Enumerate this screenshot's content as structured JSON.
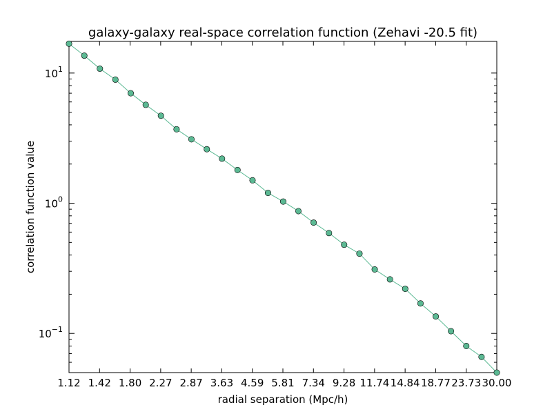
{
  "chart_data": {
    "type": "line",
    "title": "galaxy-galaxy real-space correlation function (Zehavi -20.5 fit)",
    "xlabel": "radial separation (Mpc/h)",
    "ylabel": "correlation function value",
    "x_scale": "log",
    "y_scale": "log",
    "xlim": [
      1.12,
      30.0
    ],
    "ylim": [
      0.05,
      17.5
    ],
    "x_tick_labels": [
      "1.12",
      "1.42",
      "1.80",
      "2.27",
      "2.87",
      "3.63",
      "4.59",
      "5.81",
      "7.34",
      "9.28",
      "11.74",
      "14.84",
      "18.77",
      "23.73",
      "30.00"
    ],
    "y_ticks": [
      {
        "value": 0.1,
        "base": "10",
        "exp": "−1"
      },
      {
        "value": 1,
        "base": "10",
        "exp": "0"
      },
      {
        "value": 10,
        "base": "10",
        "exp": "1"
      }
    ],
    "grid": false,
    "series": [
      {
        "color": "#5bb993",
        "marker": "circle",
        "x": [
          1.12,
          1.26,
          1.42,
          1.6,
          1.8,
          2.02,
          2.27,
          2.56,
          2.87,
          3.23,
          3.63,
          4.09,
          4.59,
          5.17,
          5.81,
          6.53,
          7.34,
          8.26,
          9.28,
          10.44,
          11.74,
          13.2,
          14.84,
          16.69,
          18.77,
          21.1,
          23.73,
          26.68,
          30.0
        ],
        "y": [
          16.8,
          13.6,
          10.8,
          8.9,
          7.0,
          5.7,
          4.7,
          3.7,
          3.1,
          2.6,
          2.2,
          1.8,
          1.5,
          1.2,
          1.03,
          0.87,
          0.71,
          0.59,
          0.48,
          0.41,
          0.31,
          0.26,
          0.22,
          0.17,
          0.135,
          0.104,
          0.08,
          0.066,
          0.05
        ]
      }
    ]
  }
}
